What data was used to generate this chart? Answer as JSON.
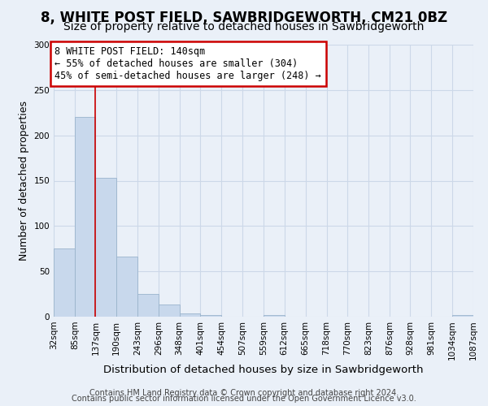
{
  "title": "8, WHITE POST FIELD, SAWBRIDGEWORTH, CM21 0BZ",
  "subtitle": "Size of property relative to detached houses in Sawbridgeworth",
  "xlabel": "Distribution of detached houses by size in Sawbridgeworth",
  "ylabel": "Number of detached properties",
  "bin_edges": [
    32,
    85,
    137,
    190,
    243,
    296,
    348,
    401,
    454,
    507,
    559,
    612,
    665,
    718,
    770,
    823,
    876,
    928,
    981,
    1034,
    1087
  ],
  "bar_heights": [
    75,
    220,
    153,
    66,
    25,
    13,
    4,
    2,
    0,
    0,
    2,
    0,
    0,
    0,
    0,
    0,
    0,
    0,
    0,
    2
  ],
  "bar_color": "#c8d8ec",
  "bar_edgecolor": "#9ab4cc",
  "bar_linewidth": 0.6,
  "vline_x": 137,
  "vline_color": "#cc0000",
  "vline_linewidth": 1.2,
  "annotation_text": "8 WHITE POST FIELD: 140sqm\n← 55% of detached houses are smaller (304)\n45% of semi-detached houses are larger (248) →",
  "annotation_box_facecolor": "#ffffff",
  "annotation_box_edgecolor": "#cc0000",
  "ylim": [
    0,
    300
  ],
  "yticks": [
    0,
    50,
    100,
    150,
    200,
    250,
    300
  ],
  "tick_labels": [
    "32sqm",
    "85sqm",
    "137sqm",
    "190sqm",
    "243sqm",
    "296sqm",
    "348sqm",
    "401sqm",
    "454sqm",
    "507sqm",
    "559sqm",
    "612sqm",
    "665sqm",
    "718sqm",
    "770sqm",
    "823sqm",
    "876sqm",
    "928sqm",
    "981sqm",
    "1034sqm",
    "1087sqm"
  ],
  "grid_color": "#ccd8e8",
  "background_color": "#eaf0f8",
  "plot_bg_color": "#eaf0f8",
  "footer_line1": "Contains HM Land Registry data © Crown copyright and database right 2024.",
  "footer_line2": "Contains public sector information licensed under the Open Government Licence v3.0.",
  "title_fontsize": 12,
  "subtitle_fontsize": 10,
  "xlabel_fontsize": 9.5,
  "ylabel_fontsize": 9,
  "tick_fontsize": 7.5,
  "annotation_fontsize": 8.5,
  "footer_fontsize": 7
}
